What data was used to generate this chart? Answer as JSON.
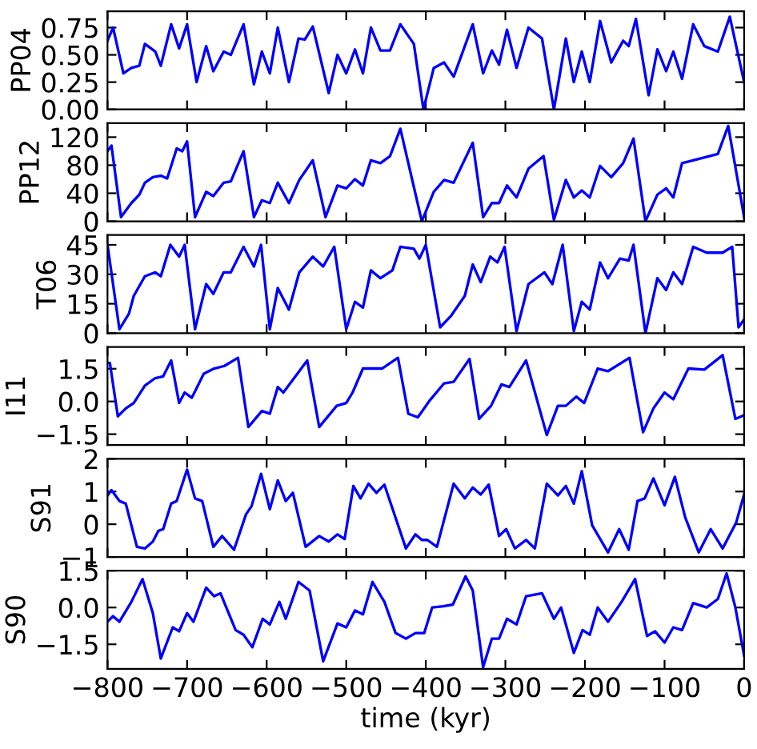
{
  "chart_data": [
    {
      "type": "line",
      "ylabel": "PP04",
      "tick_labels": "y",
      "xlim": [
        -800,
        0
      ],
      "xticks": [
        -800,
        -700,
        -600,
        -500,
        -400,
        -300,
        -200,
        -100,
        0
      ],
      "ylim": [
        0,
        0.9
      ],
      "yticks": [
        {
          "value": 0,
          "label": "0.00"
        },
        {
          "value": 0.25,
          "label": "0.25"
        },
        {
          "value": 0.5,
          "label": "0.50"
        },
        {
          "value": 0.75,
          "label": "0.75"
        }
      ],
      "series": [
        {
          "color": "#0000ff",
          "x": [
            -800,
            -793,
            -780,
            -770,
            -760,
            -753,
            -740,
            -733,
            -720,
            -710,
            -700,
            -688,
            -676,
            -667,
            -654,
            -645,
            -629,
            -616,
            -606,
            -596,
            -586,
            -572,
            -560,
            -552,
            -542,
            -522,
            -511,
            -500,
            -489,
            -479,
            -469,
            -457,
            -445,
            -432,
            -415,
            -403,
            -390,
            -377,
            -365,
            -341,
            -328,
            -317,
            -308,
            -298,
            -286,
            -271,
            -254,
            -239,
            -224,
            -214,
            -204,
            -194,
            -181,
            -167,
            -152,
            -145,
            -136,
            -120,
            -109,
            -98,
            -89,
            -78,
            -64,
            -50,
            -33,
            -18,
            0
          ],
          "values": [
            0.63,
            0.75,
            0.33,
            0.38,
            0.4,
            0.6,
            0.53,
            0.4,
            0.78,
            0.56,
            0.78,
            0.25,
            0.58,
            0.35,
            0.53,
            0.5,
            0.78,
            0.23,
            0.53,
            0.33,
            0.75,
            0.25,
            0.65,
            0.64,
            0.76,
            0.15,
            0.5,
            0.33,
            0.55,
            0.33,
            0.75,
            0.54,
            0.54,
            0.78,
            0.6,
            0.0,
            0.38,
            0.43,
            0.3,
            0.78,
            0.33,
            0.54,
            0.41,
            0.73,
            0.38,
            0.75,
            0.65,
            0.0,
            0.65,
            0.25,
            0.53,
            0.25,
            0.81,
            0.43,
            0.63,
            0.58,
            0.83,
            0.13,
            0.55,
            0.35,
            0.53,
            0.28,
            0.78,
            0.58,
            0.53,
            0.85,
            0.25
          ]
        }
      ]
    },
    {
      "type": "line",
      "ylabel": "PP12",
      "tick_labels": "y",
      "xlim": [
        -800,
        0
      ],
      "xticks": [
        -800,
        -700,
        -600,
        -500,
        -400,
        -300,
        -200,
        -100,
        0
      ],
      "ylim": [
        0,
        140
      ],
      "yticks": [
        0,
        40,
        80,
        120
      ],
      "series": [
        {
          "color": "#0000ff",
          "x": [
            -800,
            -795,
            -783,
            -770,
            -760,
            -753,
            -743,
            -733,
            -725,
            -713,
            -706,
            -700,
            -690,
            -676,
            -667,
            -654,
            -645,
            -629,
            -616,
            -606,
            -596,
            -586,
            -572,
            -559,
            -542,
            -526,
            -511,
            -500,
            -489,
            -479,
            -469,
            -457,
            -445,
            -432,
            -405,
            -390,
            -377,
            -365,
            -341,
            -328,
            -317,
            -308,
            -298,
            -286,
            -271,
            -252,
            -239,
            -224,
            -214,
            -204,
            -194,
            -181,
            -167,
            -152,
            -139,
            -124,
            -109,
            -98,
            -89,
            -78,
            -64,
            -33,
            -20,
            0
          ],
          "values": [
            100,
            108,
            6,
            26,
            38,
            55,
            63,
            65,
            61,
            104,
            100,
            114,
            6,
            42,
            36,
            55,
            57,
            100,
            6,
            30,
            26,
            55,
            26,
            59,
            87,
            6,
            51,
            47,
            60,
            51,
            87,
            83,
            93,
            132,
            0,
            42,
            59,
            55,
            112,
            6,
            26,
            26,
            51,
            34,
            75,
            93,
            2,
            59,
            34,
            44,
            34,
            79,
            63,
            83,
            118,
            0,
            38,
            47,
            34,
            83,
            87,
            96,
            136,
            6
          ]
        }
      ]
    },
    {
      "type": "line",
      "ylabel": "T06",
      "tick_labels": "y",
      "xlim": [
        -800,
        0
      ],
      "xticks": [
        -800,
        -700,
        -600,
        -500,
        -400,
        -300,
        -200,
        -100,
        0
      ],
      "ylim": [
        0,
        50
      ],
      "yticks": [
        0,
        15,
        30,
        45
      ],
      "series": [
        {
          "color": "#0000ff",
          "x": [
            -800,
            -785,
            -773,
            -767,
            -753,
            -740,
            -733,
            -721,
            -710,
            -703,
            -690,
            -676,
            -667,
            -654,
            -645,
            -629,
            -616,
            -607,
            -596,
            -586,
            -572,
            -559,
            -542,
            -529,
            -515,
            -500,
            -489,
            -479,
            -469,
            -457,
            -442,
            -432,
            -415,
            -408,
            -400,
            -382,
            -368,
            -351,
            -341,
            -331,
            -319,
            -310,
            -301,
            -286,
            -271,
            -251,
            -241,
            -228,
            -214,
            -204,
            -194,
            -181,
            -171,
            -156,
            -145,
            -139,
            -124,
            -109,
            -98,
            -89,
            -78,
            -64,
            -47,
            -27,
            -15,
            -7,
            0
          ],
          "values": [
            45,
            2,
            10,
            19,
            29,
            31,
            29,
            45,
            39,
            45,
            2,
            25,
            20,
            31,
            31,
            44,
            34,
            45,
            2,
            23,
            12,
            31,
            39,
            34,
            44,
            2,
            16,
            13,
            32,
            28,
            32,
            44,
            43,
            38,
            45,
            3,
            9,
            19,
            35,
            26,
            39,
            36,
            44,
            1,
            25,
            31,
            25,
            45,
            1,
            16,
            12,
            36,
            28,
            38,
            37,
            45,
            0,
            28,
            22,
            31,
            25,
            44,
            41,
            41,
            44,
            3,
            7
          ]
        }
      ]
    },
    {
      "type": "line",
      "ylabel": "I11",
      "tick_labels": "y",
      "xlim": [
        -800,
        0
      ],
      "xticks": [
        -800,
        -700,
        -600,
        -500,
        -400,
        -300,
        -200,
        -100,
        0
      ],
      "ylim": [
        -2,
        2.5
      ],
      "yticks": [
        {
          "value": -1.5,
          "label": "−1.5"
        },
        {
          "value": 0,
          "label": "0.0"
        },
        {
          "value": 1.5,
          "label": "1.5"
        }
      ],
      "series": [
        {
          "color": "#0000ff",
          "x": [
            -800,
            -797,
            -787,
            -777,
            -767,
            -753,
            -740,
            -730,
            -720,
            -710,
            -703,
            -694,
            -679,
            -666,
            -653,
            -636,
            -623,
            -606,
            -596,
            -586,
            -579,
            -549,
            -534,
            -512,
            -500,
            -492,
            -479,
            -455,
            -435,
            -422,
            -410,
            -395,
            -377,
            -365,
            -345,
            -333,
            -318,
            -305,
            -295,
            -274,
            -248,
            -234,
            -224,
            -211,
            -201,
            -184,
            -171,
            -144,
            -127,
            -114,
            -100,
            -89,
            -70,
            -50,
            -27,
            -11,
            0
          ],
          "values": [
            1.76,
            1.76,
            -0.68,
            -0.32,
            -0.07,
            0.73,
            1.07,
            1.15,
            1.88,
            -0.07,
            0.41,
            0.17,
            1.27,
            1.51,
            1.63,
            2.0,
            -1.17,
            -0.44,
            -0.56,
            0.66,
            0.41,
            1.88,
            -1.17,
            -0.2,
            -0.07,
            0.41,
            1.51,
            1.51,
            2.0,
            -0.56,
            -0.73,
            0.05,
            0.83,
            0.9,
            1.95,
            -0.8,
            -0.2,
            0.78,
            0.66,
            1.88,
            -1.54,
            -0.2,
            -0.2,
            0.22,
            -0.07,
            1.51,
            1.39,
            2.0,
            -1.41,
            -0.32,
            0.41,
            0.1,
            1.51,
            1.46,
            2.12,
            -0.8,
            -0.63
          ]
        }
      ]
    },
    {
      "type": "line",
      "ylabel": "S91",
      "tick_labels": "y",
      "xlim": [
        -800,
        0
      ],
      "xticks": [
        -800,
        -700,
        -600,
        -500,
        -400,
        -300,
        -200,
        -100,
        0
      ],
      "ylim": [
        -1,
        2
      ],
      "yticks": [
        {
          "value": -1,
          "label": "−1"
        },
        0,
        1,
        2
      ],
      "series": [
        {
          "color": "#0000ff",
          "x": [
            -800,
            -795,
            -785,
            -777,
            -763,
            -753,
            -743,
            -736,
            -730,
            -720,
            -713,
            -700,
            -690,
            -681,
            -667,
            -656,
            -641,
            -626,
            -619,
            -607,
            -596,
            -586,
            -576,
            -567,
            -551,
            -534,
            -522,
            -511,
            -502,
            -491,
            -482,
            -472,
            -462,
            -452,
            -425,
            -413,
            -405,
            -398,
            -386,
            -365,
            -351,
            -341,
            -331,
            -321,
            -308,
            -299,
            -288,
            -274,
            -263,
            -248,
            -234,
            -224,
            -214,
            -204,
            -191,
            -171,
            -157,
            -145,
            -134,
            -125,
            -114,
            -100,
            -87,
            -74,
            -57,
            -42,
            -27,
            -10,
            0
          ],
          "values": [
            0.88,
            1.04,
            0.71,
            0.63,
            -0.69,
            -0.74,
            -0.53,
            -0.2,
            -0.15,
            0.63,
            0.71,
            1.67,
            0.79,
            0.71,
            -0.69,
            -0.36,
            -0.78,
            0.3,
            0.55,
            1.54,
            0.46,
            1.34,
            0.71,
            0.96,
            -0.69,
            -0.36,
            -0.53,
            -0.31,
            -0.45,
            1.17,
            0.79,
            1.24,
            0.96,
            1.21,
            -0.74,
            -0.31,
            -0.48,
            -0.48,
            -0.69,
            1.24,
            0.79,
            1.12,
            0.91,
            1.21,
            -0.36,
            -0.15,
            -0.74,
            -0.48,
            -0.74,
            1.24,
            0.88,
            1.17,
            0.63,
            1.62,
            -0.03,
            -0.86,
            -0.15,
            -0.78,
            0.71,
            0.79,
            1.4,
            0.58,
            1.45,
            0.21,
            -0.86,
            -0.15,
            -0.74,
            0.05,
            0.91
          ]
        }
      ]
    },
    {
      "type": "line",
      "ylabel": "S90",
      "xlabel": "time (kyr)",
      "xlim": [
        -800,
        0
      ],
      "xticks": [
        {
          "value": -800,
          "label": "−800"
        },
        {
          "value": -700,
          "label": "−700"
        },
        {
          "value": -600,
          "label": "−600"
        },
        {
          "value": -500,
          "label": "−500"
        },
        {
          "value": -400,
          "label": "−400"
        },
        {
          "value": -300,
          "label": "−300"
        },
        {
          "value": -200,
          "label": "−200"
        },
        {
          "value": -100,
          "label": "−100"
        },
        0
      ],
      "ylim": [
        -2.5,
        1.5
      ],
      "yticks": [
        {
          "value": -1.5,
          "label": "−1.5"
        },
        {
          "value": 0,
          "label": "0.0"
        },
        {
          "value": 1.5,
          "label": "1.5"
        }
      ],
      "series": [
        {
          "color": "#0000ff",
          "x": [
            -800,
            -793,
            -785,
            -770,
            -756,
            -743,
            -733,
            -718,
            -710,
            -700,
            -692,
            -676,
            -666,
            -658,
            -639,
            -629,
            -618,
            -605,
            -596,
            -584,
            -576,
            -560,
            -546,
            -529,
            -511,
            -500,
            -489,
            -479,
            -467,
            -452,
            -438,
            -425,
            -413,
            -402,
            -392,
            -378,
            -366,
            -350,
            -341,
            -328,
            -317,
            -308,
            -298,
            -286,
            -274,
            -254,
            -239,
            -230,
            -214,
            -203,
            -194,
            -184,
            -171,
            -154,
            -137,
            -122,
            -112,
            -100,
            -89,
            -78,
            -64,
            -47,
            -33,
            -22,
            -11,
            0
          ],
          "values": [
            -0.58,
            -0.35,
            -0.58,
            0.23,
            1.16,
            -0.23,
            -2.08,
            -0.81,
            -0.97,
            -0.23,
            -0.58,
            0.81,
            0.46,
            0.58,
            -0.92,
            -1.11,
            -1.62,
            -0.46,
            -0.69,
            0.23,
            -0.46,
            1.04,
            0.69,
            -2.19,
            -0.65,
            -0.81,
            -0.12,
            -0.28,
            1.04,
            0.23,
            -1.04,
            -1.27,
            -1.04,
            -1.04,
            0.0,
            0.05,
            0.12,
            1.27,
            0.69,
            -2.43,
            -1.27,
            -1.27,
            -0.46,
            -0.69,
            0.46,
            0.58,
            -0.46,
            0.0,
            -1.85,
            -0.92,
            -1.11,
            0.0,
            -0.58,
            0.23,
            1.16,
            -1.16,
            -0.97,
            -1.43,
            -0.81,
            -0.92,
            0.18,
            0.0,
            0.35,
            1.39,
            0.0,
            -1.96
          ]
        }
      ]
    }
  ]
}
